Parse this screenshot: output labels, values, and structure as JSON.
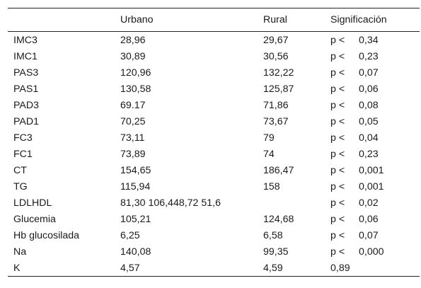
{
  "table": {
    "headers": [
      "",
      "Urbano",
      "Rural",
      "Significación"
    ],
    "rows": [
      {
        "variable": "IMC3",
        "urbano": "28,96",
        "rural": "29,67",
        "p_label": "p <",
        "p_value": "0,34"
      },
      {
        "variable": "IMC1",
        "urbano": "30,89",
        "rural": "30,56",
        "p_label": "p <",
        "p_value": "0,23"
      },
      {
        "variable": "PAS3",
        "urbano": "120,96",
        "rural": "132,22",
        "p_label": "p <",
        "p_value": "0,07"
      },
      {
        "variable": "PAS1",
        "urbano": "130,58",
        "rural": "125,87",
        "p_label": "p <",
        "p_value": "0,06"
      },
      {
        "variable": "PAD3",
        "urbano": "69.17",
        "rural": "71,86",
        "p_label": "p <",
        "p_value": "0,08"
      },
      {
        "variable": "PAD1",
        "urbano": "70,25",
        "rural": "73,67",
        "p_label": "p <",
        "p_value": "0,05"
      },
      {
        "variable": "FC3",
        "urbano": "73,11",
        "rural": "79",
        "p_label": "p <",
        "p_value": "0,04"
      },
      {
        "variable": "FC1",
        "urbano": "73,89",
        "rural": "74",
        "p_label": "p <",
        "p_value": "0,23"
      },
      {
        "variable": "CT",
        "urbano": "154,65",
        "rural": "186,47",
        "p_label": "p <",
        "p_value": "0,001"
      },
      {
        "variable": "TG",
        "urbano": "115,94",
        "rural": "158",
        "p_label": "p <",
        "p_value": "0,001"
      },
      {
        "variable": "LDLHDL",
        "urbano": "81,30 106,448,72 51,6",
        "rural": "",
        "p_label": "p <",
        "p_value": "0,02"
      },
      {
        "variable": "Glucemia",
        "urbano": "105,21",
        "rural": "124,68",
        "p_label": "p <",
        "p_value": "0,06"
      },
      {
        "variable": "Hb glucosilada",
        "urbano": "6,25",
        "rural": "6,58",
        "p_label": "p <",
        "p_value": "0,07"
      },
      {
        "variable": "Na",
        "urbano": "140,08",
        "rural": "99,35",
        "p_label": "p <",
        "p_value": "0,000"
      },
      {
        "variable": "K",
        "urbano": "4,57",
        "rural": "4,59",
        "p_label": "",
        "p_value": "0,89"
      }
    ]
  }
}
